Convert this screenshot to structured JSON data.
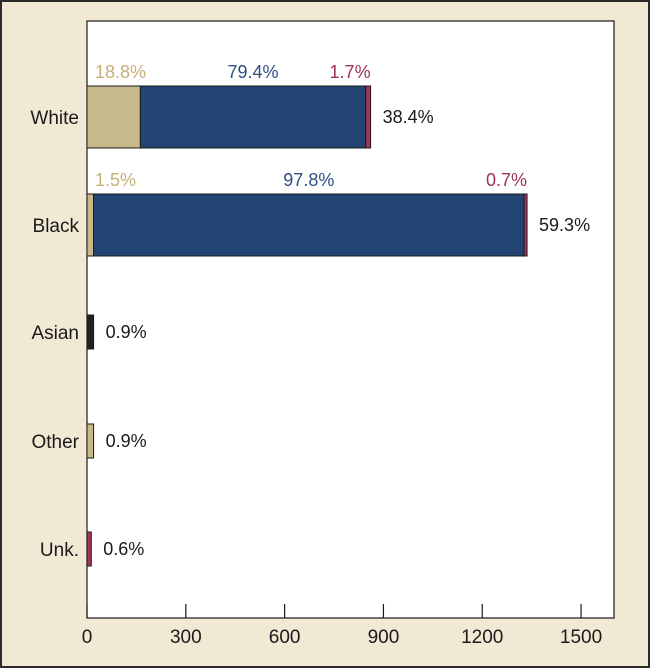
{
  "colors": {
    "background": "#f1e9d3",
    "plot_bg": "#ffffff",
    "tan": "#c8b98a",
    "navy": "#244573",
    "crimson": "#a3355f",
    "dark": "#222222",
    "tan_text": "#c5b078",
    "navy_text": "#2f4f86",
    "crimson_text": "#a0325d"
  },
  "chart_data": {
    "type": "bar",
    "orientation": "horizontal",
    "stacked": true,
    "xlim": [
      0,
      1600
    ],
    "xticks": [
      0,
      300,
      600,
      900,
      1200,
      1500
    ],
    "xtick_labels": [
      "0",
      "300",
      "600",
      "900",
      "1200",
      "1500"
    ],
    "categories": [
      "White",
      "Black",
      "Asian",
      "Other",
      "Unk."
    ],
    "totals_labels": [
      "38.4%",
      "59.3%",
      "0.9%",
      "0.9%",
      "0.6%"
    ],
    "bars": [
      {
        "category": "White",
        "segments": [
          {
            "value": 162,
            "color": "tan",
            "label": "18.8%",
            "label_color": "tan_text"
          },
          {
            "value": 684,
            "color": "navy",
            "label": "79.4%",
            "label_color": "navy_text"
          },
          {
            "value": 15,
            "color": "crimson",
            "label": "1.7%",
            "label_color": "crimson_text"
          }
        ]
      },
      {
        "category": "Black",
        "segments": [
          {
            "value": 20,
            "color": "tan",
            "label": "1.5%",
            "label_color": "tan_text"
          },
          {
            "value": 1307,
            "color": "navy",
            "label": "97.8%",
            "label_color": "navy_text"
          },
          {
            "value": 9,
            "color": "crimson",
            "label": "0.7%",
            "label_color": "crimson_text"
          }
        ]
      },
      {
        "category": "Asian",
        "segments": [
          {
            "value": 20,
            "color": "dark",
            "label": "",
            "label_color": ""
          }
        ]
      },
      {
        "category": "Other",
        "segments": [
          {
            "value": 20,
            "color": "tan",
            "label": "",
            "label_color": ""
          }
        ]
      },
      {
        "category": "Unk.",
        "segments": [
          {
            "value": 13,
            "color": "crimson",
            "label": "",
            "label_color": ""
          }
        ]
      }
    ],
    "grid": false
  }
}
